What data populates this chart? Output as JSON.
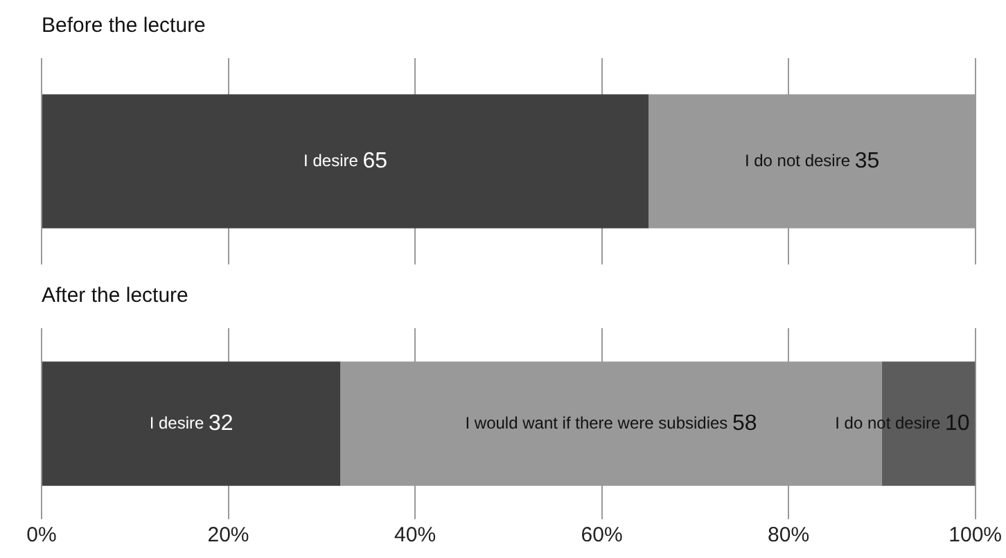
{
  "chart_data": [
    {
      "type": "bar",
      "title": "Before the lecture",
      "orientation": "horizontal",
      "stacked": true,
      "categories": [
        null
      ],
      "series": [
        {
          "name": "I desire",
          "color": "#404040",
          "values": [
            65
          ]
        },
        {
          "name": "I do not desire",
          "color": "#999999",
          "values": [
            35
          ]
        }
      ],
      "xlim": [
        0,
        100
      ],
      "xticks": [
        0,
        20,
        40,
        60,
        80,
        100
      ],
      "grid": "x",
      "tick_labels": false,
      "data_labels": true,
      "legend": false
    },
    {
      "type": "bar",
      "title": "After the lecture",
      "orientation": "horizontal",
      "stacked": true,
      "categories": [
        null
      ],
      "series": [
        {
          "name": "I desire",
          "color": "#404040",
          "values": [
            32
          ]
        },
        {
          "name": "I would want if there were subsidies",
          "color": "#999999",
          "values": [
            58
          ]
        },
        {
          "name": "I do not desire",
          "color": "#5c5c5c",
          "values": [
            10
          ]
        }
      ],
      "xlim": [
        0,
        100
      ],
      "xticks": [
        {
          "value": 0,
          "label": "0%"
        },
        {
          "value": 20,
          "label": "20%"
        },
        {
          "value": 40,
          "label": "40%"
        },
        {
          "value": 60,
          "label": "60%"
        },
        {
          "value": 80,
          "label": "80%"
        },
        {
          "value": 100,
          "label": "100%"
        }
      ],
      "grid": "x",
      "data_labels": true,
      "legend": false
    }
  ]
}
